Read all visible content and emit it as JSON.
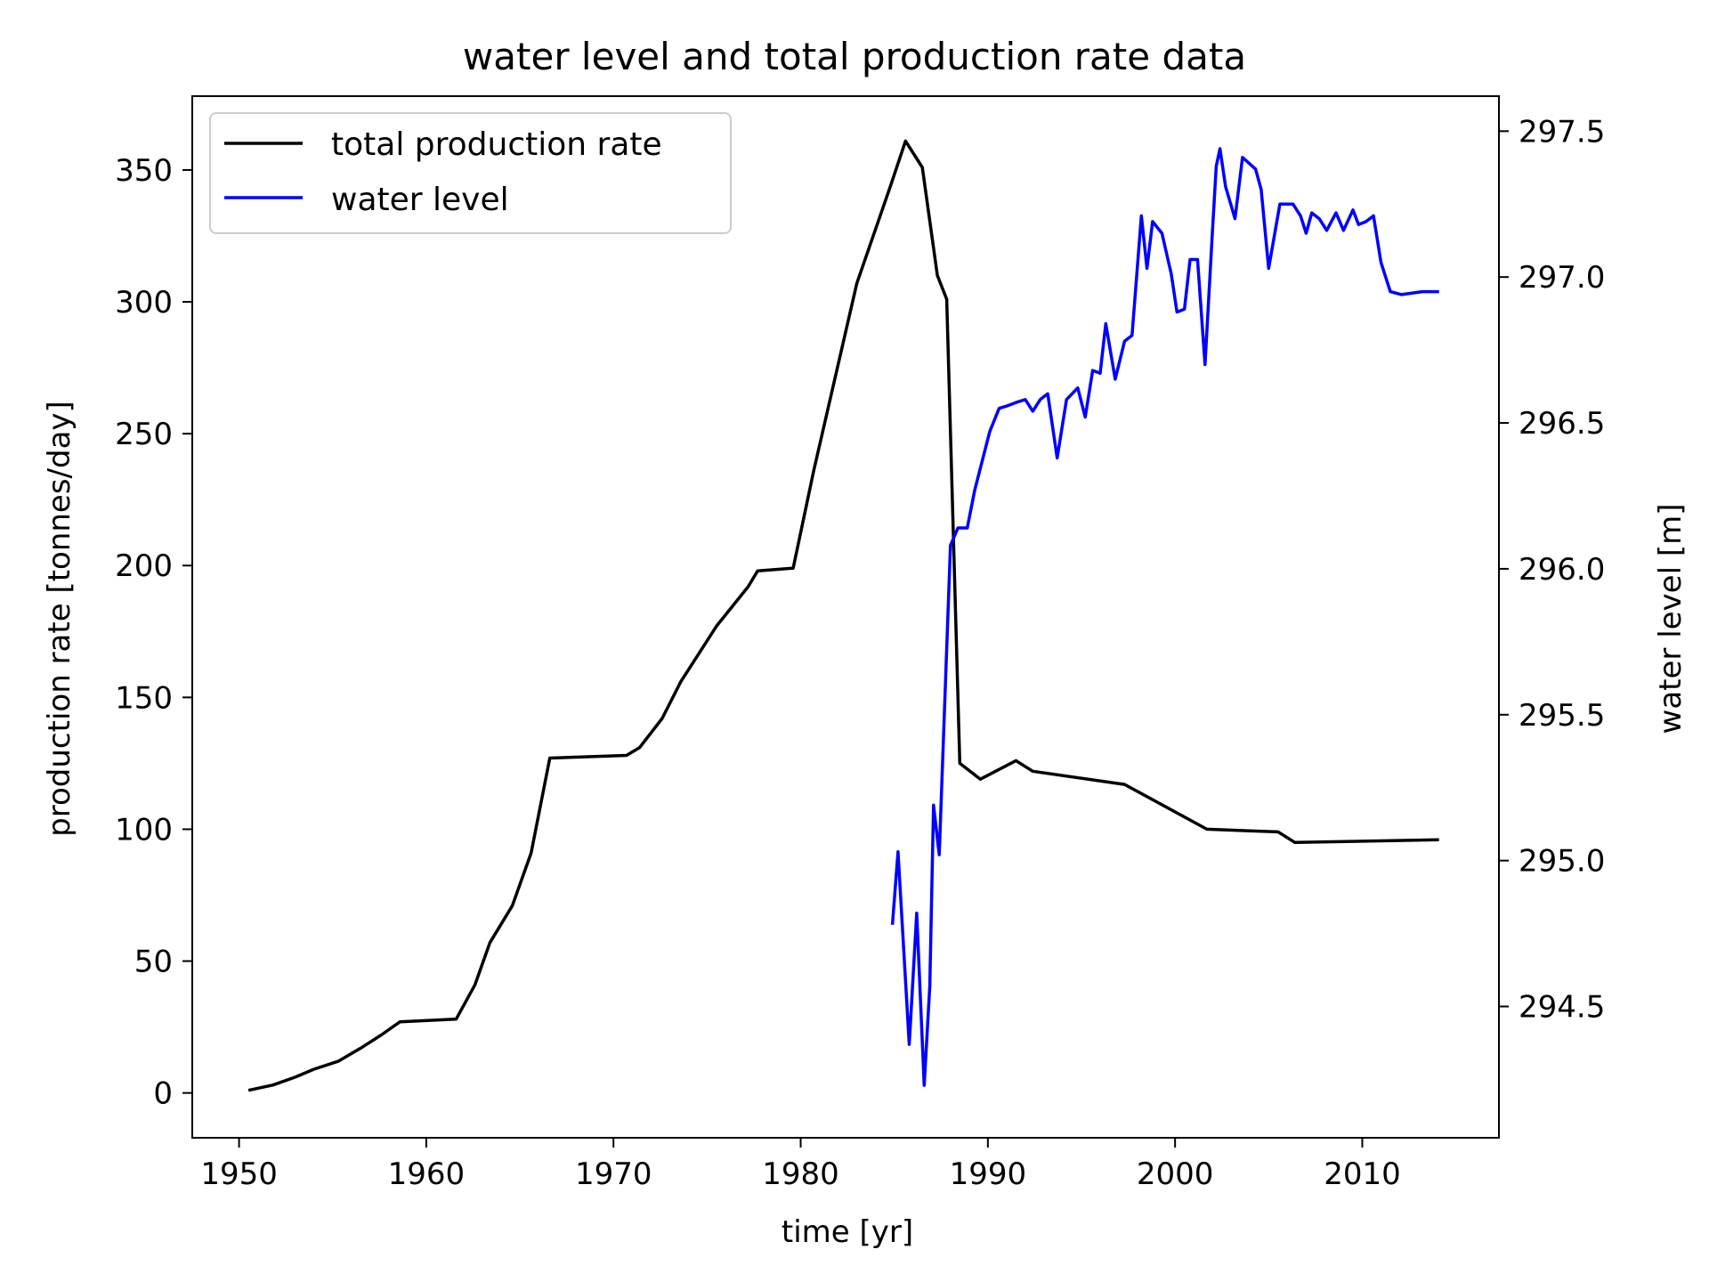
{
  "chart_data": {
    "type": "line",
    "title": "water level and total production rate data",
    "xlabel": "time [yr]",
    "ylabel": "production rate [tonnes/day]",
    "ylabel_right": "water level [m]",
    "xlim": [
      1947.5,
      2017.3
    ],
    "ylim": [
      -17,
      378
    ],
    "ylim_right": [
      294.05,
      297.62
    ],
    "x_ticks": [
      "1950",
      "1960",
      "1970",
      "1980",
      "1990",
      "2000",
      "2010"
    ],
    "y_ticks": [
      "0",
      "50",
      "100",
      "150",
      "200",
      "250",
      "300",
      "350"
    ],
    "y_ticks_right": [
      "294.5",
      "295.0",
      "295.5",
      "296.0",
      "296.5",
      "297.0",
      "297.5"
    ],
    "grid": false,
    "legend_position": "upper-left",
    "series": [
      {
        "name": "total production rate",
        "axis": "left",
        "color": "#000000",
        "x": [
          1950.5,
          1951.8,
          1953.0,
          1954.0,
          1955.3,
          1956.5,
          1957.6,
          1958.6,
          1961.6,
          1962.6,
          1963.4,
          1964.6,
          1965.6,
          1966.6,
          1970.7,
          1971.4,
          1972.6,
          1973.6,
          1975.5,
          1977.2,
          1977.7,
          1979.6,
          1980.7,
          1983.0,
          1984.8,
          1985.6,
          1986.5,
          1987.3,
          1987.8,
          1988.5,
          1989.6,
          1991.5,
          1992.4,
          1997.3,
          2001.7,
          2005.5,
          2006.4,
          2014.1
        ],
        "y": [
          1,
          3,
          6,
          9,
          12,
          17,
          22,
          27,
          28,
          41,
          57,
          71,
          91,
          127,
          128,
          131,
          142,
          156,
          177,
          192,
          198,
          199,
          236,
          307,
          344,
          361,
          351,
          310,
          301,
          125,
          119,
          126,
          122,
          117,
          100,
          99,
          95,
          96
        ]
      },
      {
        "name": "water level",
        "axis": "right",
        "color": "#0000ff",
        "x": [
          1984.9,
          1985.2,
          1985.8,
          1986.2,
          1986.6,
          1986.9,
          1987.1,
          1987.4,
          1987.7,
          1988.0,
          1988.4,
          1988.9,
          1989.3,
          1989.7,
          1990.1,
          1990.6,
          1991.1,
          1991.5,
          1992.0,
          1992.4,
          1992.8,
          1993.2,
          1993.7,
          1994.2,
          1994.8,
          1995.2,
          1995.6,
          1996.0,
          1996.3,
          1996.8,
          1997.3,
          1997.7,
          1998.2,
          1998.5,
          1998.8,
          1999.3,
          1999.8,
          2000.1,
          2000.5,
          2000.8,
          2001.2,
          2001.6,
          2002.0,
          2002.2,
          2002.4,
          2002.7,
          2003.2,
          2003.6,
          2004.3,
          2004.6,
          2005.0,
          2005.6,
          2005.9,
          2006.3,
          2006.7,
          2007.0,
          2007.3,
          2007.7,
          2008.1,
          2008.6,
          2009.0,
          2009.5,
          2009.8,
          2010.2,
          2010.6,
          2011.0,
          2011.5,
          2012.1,
          2013.2,
          2014.1
        ],
        "y": [
          294.78,
          295.03,
          294.37,
          294.82,
          294.23,
          294.57,
          295.19,
          295.02,
          295.55,
          296.08,
          296.14,
          296.14,
          296.27,
          296.37,
          296.47,
          296.55,
          296.56,
          296.57,
          296.58,
          296.54,
          296.58,
          296.6,
          296.38,
          296.58,
          296.62,
          296.52,
          296.68,
          296.67,
          296.84,
          296.65,
          296.78,
          296.8,
          297.21,
          297.03,
          297.19,
          297.15,
          297.01,
          296.88,
          296.89,
          297.06,
          297.06,
          296.7,
          297.16,
          297.38,
          297.44,
          297.31,
          297.2,
          297.41,
          297.37,
          297.3,
          297.03,
          297.25,
          297.25,
          297.25,
          297.21,
          297.15,
          297.22,
          297.2,
          297.16,
          297.22,
          297.16,
          297.23,
          297.18,
          297.19,
          297.21,
          297.05,
          296.95,
          296.94,
          296.95,
          296.95
        ]
      }
    ]
  }
}
